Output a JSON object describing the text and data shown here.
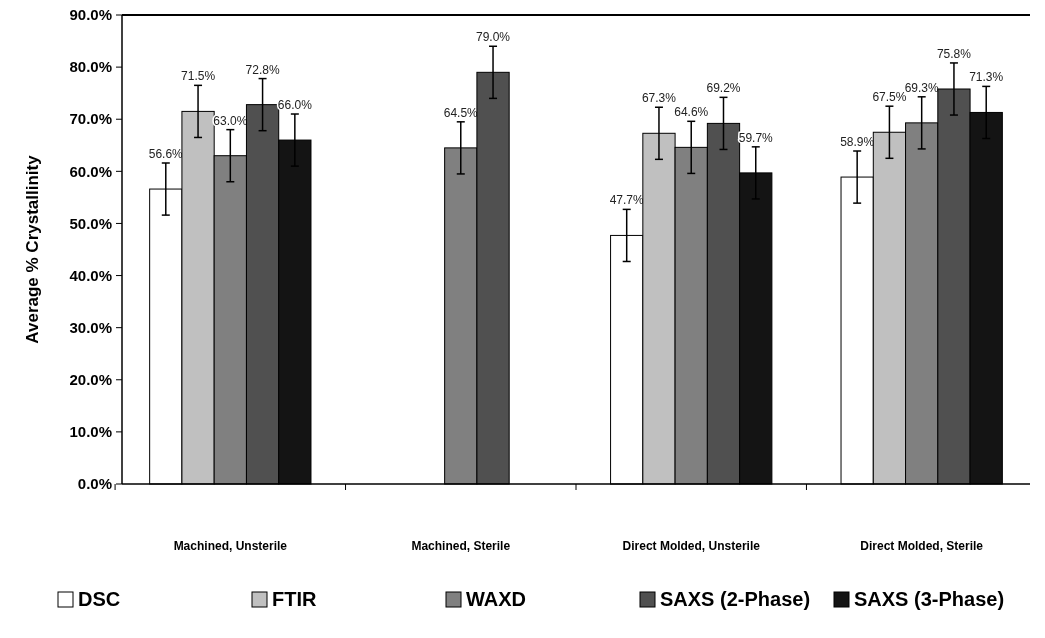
{
  "chart_data": {
    "type": "bar",
    "ylabel": "Average % Crystallinity",
    "categories": [
      "Machined, Unsterile",
      "Machined, Sterile",
      "Direct Molded, Unsterile",
      "Direct Molded, Sterile"
    ],
    "series": [
      {
        "name": "DSC",
        "color": "#ffffff",
        "values": [
          56.6,
          null,
          47.7,
          58.9
        ],
        "errors": [
          5,
          null,
          5,
          5
        ],
        "value_labels": [
          "56.6%",
          null,
          "47.7%",
          "58.9%"
        ]
      },
      {
        "name": "FTIR",
        "color": "#c0c0c0",
        "values": [
          71.5,
          null,
          67.3,
          67.5
        ],
        "errors": [
          5,
          null,
          5,
          5
        ],
        "value_labels": [
          "71.5%",
          null,
          "67.3%",
          "67.5%"
        ]
      },
      {
        "name": "WAXD",
        "color": "#808080",
        "values": [
          63.0,
          64.5,
          64.6,
          69.3
        ],
        "errors": [
          5,
          5,
          5,
          5
        ],
        "value_labels": [
          "63.0%",
          "64.5%",
          "64.6%",
          "69.3%"
        ]
      },
      {
        "name": "SAXS (2-Phase)",
        "color": "#505050",
        "values": [
          72.8,
          79.0,
          69.2,
          75.8
        ],
        "errors": [
          5,
          5,
          5,
          5
        ],
        "value_labels": [
          "72.8%",
          "79.0%",
          "69.2%",
          "75.8%"
        ]
      },
      {
        "name": "SAXS (3-Phase)",
        "color": "#141414",
        "values": [
          66.0,
          null,
          59.7,
          71.3
        ],
        "errors": [
          5,
          null,
          5,
          5
        ],
        "value_labels": [
          "66.0%",
          null,
          "59.7%",
          "71.3%"
        ]
      }
    ],
    "ylim": [
      0,
      90
    ],
    "yticks": [
      {
        "value": 0,
        "label": "0.0%"
      },
      {
        "value": 10,
        "label": "10.0%"
      },
      {
        "value": 20,
        "label": "20.0%"
      },
      {
        "value": 30,
        "label": "30.0%"
      },
      {
        "value": 40,
        "label": "40.0%"
      },
      {
        "value": 50,
        "label": "50.0%"
      },
      {
        "value": 60,
        "label": "60.0%"
      },
      {
        "value": 70,
        "label": "70.0%"
      },
      {
        "value": 80,
        "label": "80.0%"
      },
      {
        "value": 90,
        "label": "90.0%"
      }
    ],
    "grid": false,
    "legend": "bottom"
  }
}
